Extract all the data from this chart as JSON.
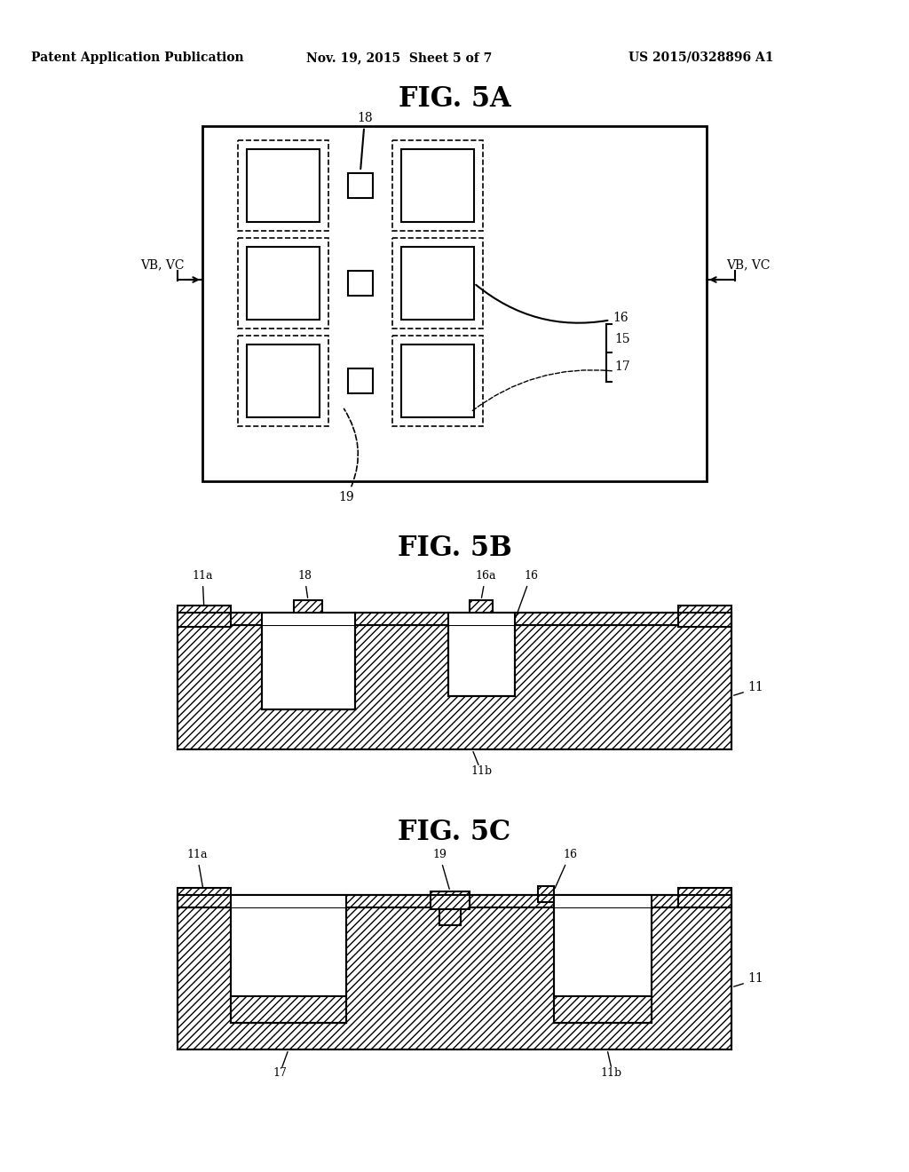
{
  "bg_color": "#ffffff",
  "header_left": "Patent Application Publication",
  "header_mid": "Nov. 19, 2015  Sheet 5 of 7",
  "header_right": "US 2015/0328896 A1",
  "fig5a_title": "FIG. 5A",
  "fig5b_title": "FIG. 5B",
  "fig5c_title": "FIG. 5C",
  "line_color": "#000000"
}
